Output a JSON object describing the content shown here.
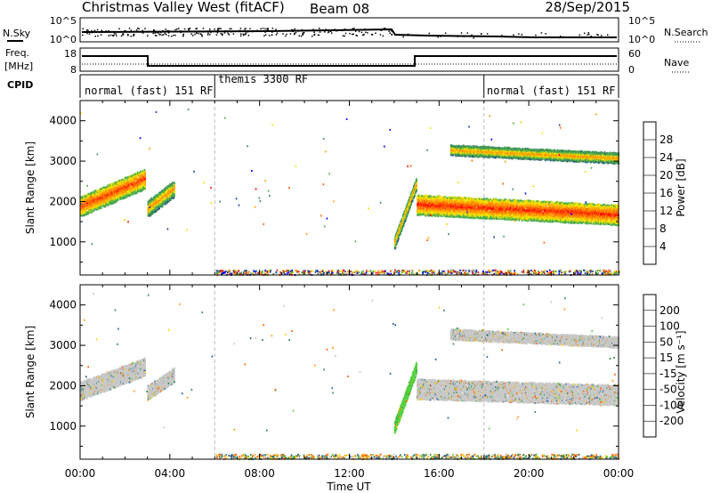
{
  "header": {
    "title": "Christmas Valley West (fitACF)",
    "beam": "Beam 08",
    "date": "28/Sep/2015"
  },
  "nsky_panel": {
    "left_label": "N.Sky",
    "right_label": "N.Search",
    "left_ticks": [
      "10^5",
      "10^0"
    ],
    "right_ticks": [
      "10^5",
      "10^0"
    ]
  },
  "freq_panel": {
    "left_label_1": "Freq.",
    "left_label_2": "[MHz]",
    "right_label": "Nave",
    "left_ticks": [
      "18",
      "8"
    ],
    "right_ticks": [
      "60",
      "0"
    ]
  },
  "cpid_panel": {
    "label": "CPID",
    "segments": [
      {
        "label": "normal (fast) 151 RF",
        "start_hour": 0,
        "end_hour": 6
      },
      {
        "label": "themis 3300 RF",
        "start_hour": 6,
        "end_hour": 18
      },
      {
        "label": "normal (fast) 151 RF",
        "start_hour": 18,
        "end_hour": 24
      }
    ]
  },
  "colors": {
    "power": [
      "#0000ff",
      "#2040a0",
      "#3f8a5a",
      "#4cb050",
      "#f0e000",
      "#ffa000",
      "#ff6000",
      "#ff0000"
    ],
    "velocity": [
      "#ff0000",
      "#ff6000",
      "#ff9a00",
      "#ffd000",
      "#c8c8c8",
      "#55d040",
      "#2e8b57",
      "#2060a0",
      "#0000c0"
    ],
    "gray": "#c8c8c8"
  },
  "chart_data": [
    {
      "type": "heatmap",
      "name": "power",
      "xlabel": "",
      "ylabel": "Slant Range [km]",
      "xlim": [
        0,
        24
      ],
      "ylim": [
        180,
        4500
      ],
      "yticks": [
        1000,
        2000,
        3000,
        4000
      ],
      "colorbar": {
        "label": "Power [dB]",
        "ticks": [
          "4",
          "8",
          "12",
          "16",
          "20",
          "24",
          "28"
        ],
        "range": [
          0,
          30
        ]
      },
      "features": [
        {
          "t0": 0.0,
          "t1": 2.9,
          "r0": 1900,
          "r1": 2600,
          "level": 26,
          "thick": 500
        },
        {
          "t0": 3.0,
          "t1": 4.2,
          "r0": 1850,
          "r1": 2350,
          "level": 22,
          "thick": 400
        },
        {
          "t0": 14.0,
          "t1": 15.0,
          "r0": 1000,
          "r1": 2500,
          "level": 22,
          "thick": 300
        },
        {
          "t0": 15.0,
          "t1": 24.0,
          "r0": 1950,
          "r1": 1700,
          "level": 27,
          "thick": 500
        },
        {
          "t0": 16.5,
          "t1": 24.0,
          "r0": 3300,
          "r1": 3100,
          "level": 22,
          "thick": 250
        }
      ]
    },
    {
      "type": "heatmap",
      "name": "velocity",
      "xlabel": "Time UT",
      "ylabel": "Slant Range [km]",
      "xlim": [
        0,
        24
      ],
      "ylim": [
        180,
        4500
      ],
      "yticks": [
        1000,
        2000,
        3000,
        4000
      ],
      "xtick_labels": [
        "00:00",
        "04:00",
        "08:00",
        "12:00",
        "16:00",
        "20:00",
        "00:00"
      ],
      "colorbar": {
        "label": "Velocity [m s⁻¹]",
        "ticks": [
          "200",
          "100",
          "50",
          "15",
          "-15",
          "-50",
          "-100",
          "-200"
        ],
        "range": [
          -250,
          250
        ]
      },
      "features": [
        {
          "t0": 0.0,
          "t1": 2.9,
          "r0": 1900,
          "r1": 2500,
          "v": 0,
          "thick": 450
        },
        {
          "t0": 3.0,
          "t1": 4.2,
          "r0": 1850,
          "r1": 2300,
          "v": 0,
          "thick": 350
        },
        {
          "t0": 14.0,
          "t1": 15.0,
          "r0": 1000,
          "r1": 2500,
          "v": 40,
          "thick": 300
        },
        {
          "t0": 15.0,
          "t1": 24.0,
          "r0": 1950,
          "r1": 1800,
          "v": 0,
          "thick": 500
        },
        {
          "t0": 16.5,
          "t1": 24.0,
          "r0": 3300,
          "r1": 3100,
          "v": 0,
          "thick": 250
        }
      ]
    }
  ]
}
